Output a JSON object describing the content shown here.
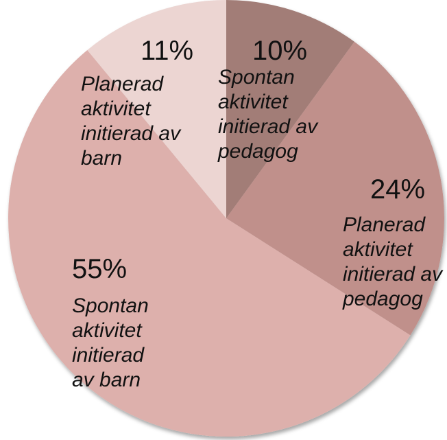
{
  "chart_data": {
    "type": "pie",
    "categories": [
      "Spontan aktivitet initierad av pedagog",
      "Planerad aktivitet initierad av pedagog",
      "Spontan aktivitet initierad av barn",
      "Planerad aktivitet initierad av barn"
    ],
    "values": [
      10,
      24,
      55,
      11
    ],
    "value_labels": [
      "10%",
      "24%",
      "55%",
      "11%"
    ],
    "colors": [
      "#a27d77",
      "#c0908b",
      "#ddb0ac",
      "#ecd5d2"
    ]
  }
}
